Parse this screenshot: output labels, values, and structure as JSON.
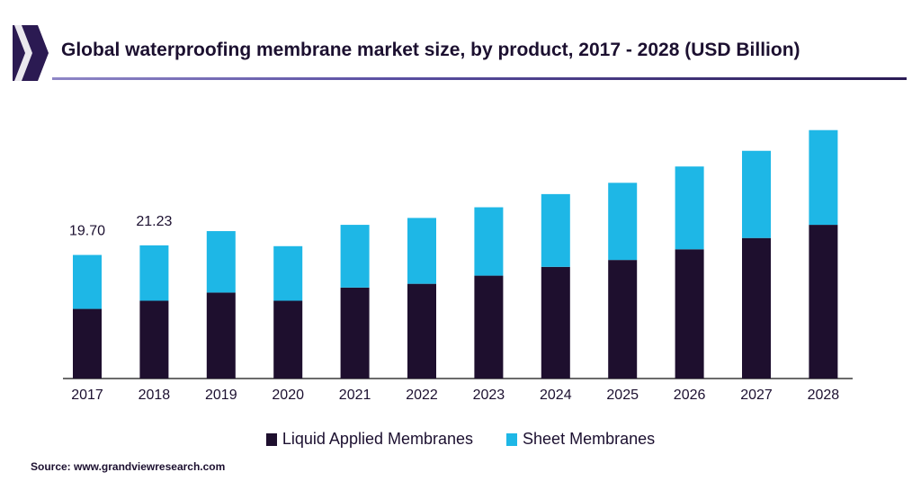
{
  "header": {
    "title": "Global waterproofing membrane market size, by product, 2017 - 2028 (USD Billion)"
  },
  "colors": {
    "liquid": "#1e0f2e",
    "sheet": "#1eb7e6",
    "axis": "#3a3a3a",
    "text": "#1c1030",
    "brand": "#2b1a52"
  },
  "chart_data": {
    "type": "bar",
    "stacked": true,
    "categories": [
      "2017",
      "2018",
      "2019",
      "2020",
      "2021",
      "2022",
      "2023",
      "2024",
      "2025",
      "2026",
      "2027",
      "2028"
    ],
    "series": [
      {
        "name": "Liquid Applied Membranes",
        "values": [
          11.1,
          12.4,
          13.7,
          12.4,
          14.5,
          15.1,
          16.4,
          17.8,
          18.9,
          20.6,
          22.4,
          24.5
        ]
      },
      {
        "name": "Sheet Membranes",
        "values": [
          8.6,
          8.83,
          9.8,
          8.7,
          10.0,
          10.5,
          10.9,
          11.6,
          12.3,
          13.2,
          13.9,
          15.1
        ]
      }
    ],
    "data_labels": [
      {
        "category": "2017",
        "text": "19.70"
      },
      {
        "category": "2018",
        "text": "21.23"
      }
    ],
    "ylim": [
      0,
      43
    ],
    "grid": false,
    "legend_position": "bottom"
  },
  "source": "Source: www.grandviewresearch.com"
}
